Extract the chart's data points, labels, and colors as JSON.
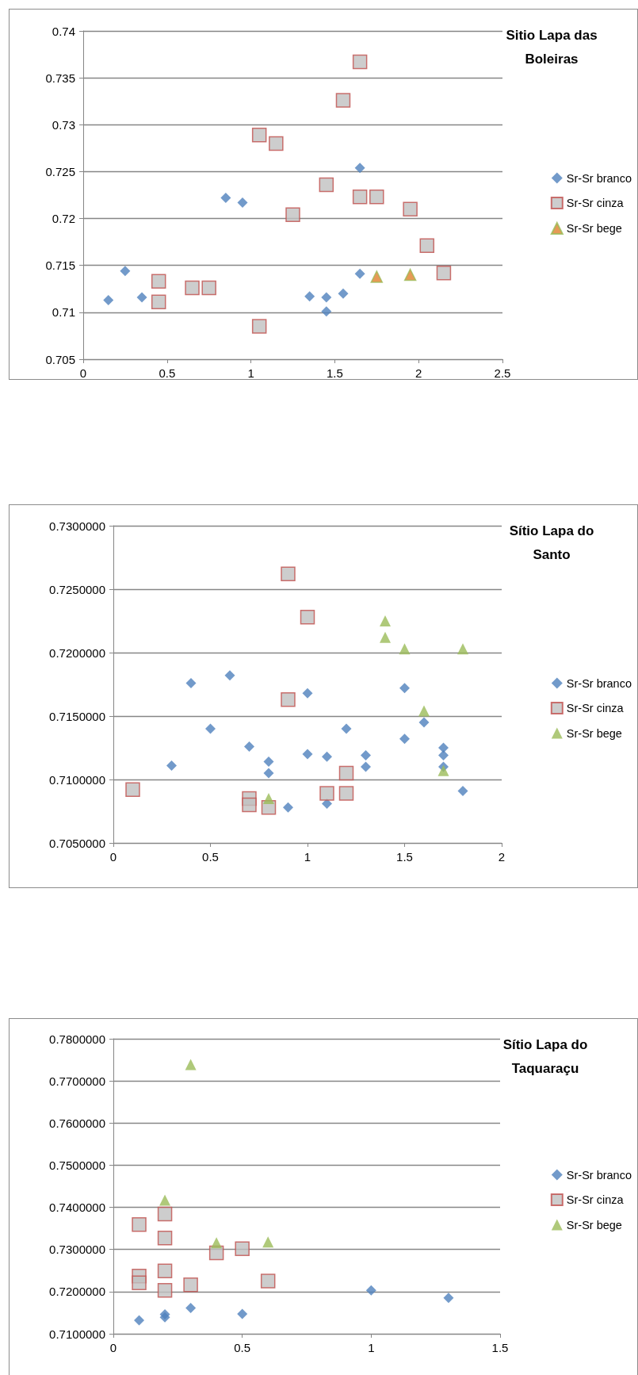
{
  "chart_data": [
    {
      "type": "scatter",
      "title": "Sitio Lapa das Boleiras",
      "xlim": [
        0,
        2.5
      ],
      "xticks": [
        0,
        0.5,
        1,
        1.5,
        2,
        2.5
      ],
      "ylim": [
        0.705,
        0.74
      ],
      "yticks": [
        0.705,
        0.71,
        0.715,
        0.72,
        0.725,
        0.73,
        0.735,
        0.74
      ],
      "grid": "y",
      "legend": "right",
      "series": [
        {
          "name": "Sr-Sr branco",
          "color": "#4f81bd",
          "marker": "diamond",
          "x": [
            0.15,
            0.25,
            0.35,
            0.85,
            0.95,
            1.35,
            1.45,
            1.45,
            1.55,
            1.65,
            1.65
          ],
          "values": [
            0.7113,
            0.7144,
            0.7116,
            0.7222,
            0.7217,
            0.7117,
            0.7116,
            0.7101,
            0.712,
            0.7254,
            0.7141
          ]
        },
        {
          "name": "Sr-Sr cinza",
          "color": "#c0c0c0",
          "marker": "square",
          "x": [
            0.45,
            0.45,
            0.65,
            0.75,
            1.05,
            1.05,
            1.15,
            1.25,
            1.45,
            1.55,
            1.65,
            1.65,
            1.75,
            1.95,
            2.05,
            2.15
          ],
          "values": [
            0.7133,
            0.7111,
            0.7126,
            0.7126,
            0.7289,
            0.7085,
            0.728,
            0.7204,
            0.7236,
            0.7326,
            0.7367,
            0.7223,
            0.7223,
            0.721,
            0.7171,
            0.7142
          ]
        },
        {
          "name": "Sr-Sr bege",
          "color": "#e0812c",
          "marker": "triangle",
          "x": [
            1.75,
            1.95
          ],
          "values": [
            0.7138,
            0.714
          ]
        }
      ]
    },
    {
      "type": "scatter",
      "title": "Sítio Lapa do Santo",
      "xlim": [
        0,
        2
      ],
      "xticks": [
        0,
        0.5,
        1,
        1.5,
        2
      ],
      "ylim": [
        0.705,
        0.73
      ],
      "yticks": [
        {
          "value": 0.705,
          "label": "0.7050000"
        },
        {
          "value": 0.71,
          "label": "0.7100000"
        },
        {
          "value": 0.715,
          "label": "0.7150000"
        },
        {
          "value": 0.72,
          "label": "0.7200000"
        },
        {
          "value": 0.725,
          "label": "0.7250000"
        },
        {
          "value": 0.73,
          "label": "0.7300000"
        }
      ],
      "grid": "y",
      "legend": "right",
      "series": [
        {
          "name": "Sr-Sr branco",
          "color": "#4f81bd",
          "marker": "diamond",
          "x": [
            0.3,
            0.4,
            0.5,
            0.6,
            0.7,
            0.8,
            0.8,
            0.9,
            1.0,
            1.0,
            1.1,
            1.1,
            1.2,
            1.3,
            1.3,
            1.5,
            1.5,
            1.6,
            1.7,
            1.7,
            1.7,
            1.8
          ],
          "values": [
            0.7111,
            0.7176,
            0.714,
            0.7182,
            0.7126,
            0.7114,
            0.7105,
            0.7078,
            0.7168,
            0.712,
            0.7118,
            0.7081,
            0.714,
            0.7119,
            0.711,
            0.7172,
            0.7132,
            0.7145,
            0.7125,
            0.7119,
            0.711,
            0.7091
          ]
        },
        {
          "name": "Sr-Sr cinza",
          "color": "#c0c0c0",
          "marker": "square",
          "x": [
            0.1,
            0.7,
            0.7,
            0.8,
            0.9,
            0.9,
            1.0,
            1.1,
            1.2,
            1.2
          ],
          "values": [
            0.7092,
            0.7085,
            0.708,
            0.7078,
            0.7262,
            0.7163,
            0.7228,
            0.7089,
            0.7105,
            0.7089
          ]
        },
        {
          "name": "Sr-Sr bege",
          "color": "#9bbb59",
          "marker": "triangle",
          "x": [
            0.8,
            1.4,
            1.4,
            1.5,
            1.6,
            1.7,
            1.8
          ],
          "values": [
            0.7085,
            0.7225,
            0.7212,
            0.7203,
            0.7154,
            0.7107,
            0.7203
          ]
        }
      ]
    },
    {
      "type": "scatter",
      "title": "Sítio Lapa do Taquaraçu",
      "xlim": [
        0,
        1.5
      ],
      "xticks": [
        0,
        0.5,
        1,
        1.5
      ],
      "ylim": [
        0.71,
        0.78
      ],
      "yticks": [
        {
          "value": 0.71,
          "label": "0.7100000"
        },
        {
          "value": 0.72,
          "label": "0.7200000"
        },
        {
          "value": 0.73,
          "label": "0.7300000"
        },
        {
          "value": 0.74,
          "label": "0.7400000"
        },
        {
          "value": 0.75,
          "label": "0.7500000"
        },
        {
          "value": 0.76,
          "label": "0.7600000"
        },
        {
          "value": 0.77,
          "label": "0.7700000"
        },
        {
          "value": 0.78,
          "label": "0.7800000"
        }
      ],
      "grid": "y",
      "legend": "right",
      "series": [
        {
          "name": "Sr-Sr branco",
          "color": "#4f81bd",
          "marker": "diamond",
          "x": [
            0.1,
            0.2,
            0.2,
            0.3,
            0.5,
            1.0,
            1.3
          ],
          "values": [
            0.7132,
            0.7146,
            0.7139,
            0.7161,
            0.7147,
            0.7203,
            0.7185
          ]
        },
        {
          "name": "Sr-Sr cinza",
          "color": "#c0c0c0",
          "marker": "square",
          "x": [
            0.1,
            0.1,
            0.1,
            0.2,
            0.2,
            0.2,
            0.2,
            0.3,
            0.4,
            0.5,
            0.6
          ],
          "values": [
            0.7359,
            0.7237,
            0.7221,
            0.7384,
            0.7327,
            0.7249,
            0.7203,
            0.7216,
            0.7292,
            0.7302,
            0.7225
          ]
        },
        {
          "name": "Sr-Sr bege",
          "color": "#9bbb59",
          "marker": "triangle",
          "x": [
            0.2,
            0.3,
            0.4,
            0.6
          ],
          "values": [
            0.7417,
            0.7739,
            0.7316,
            0.7318
          ]
        }
      ]
    }
  ]
}
